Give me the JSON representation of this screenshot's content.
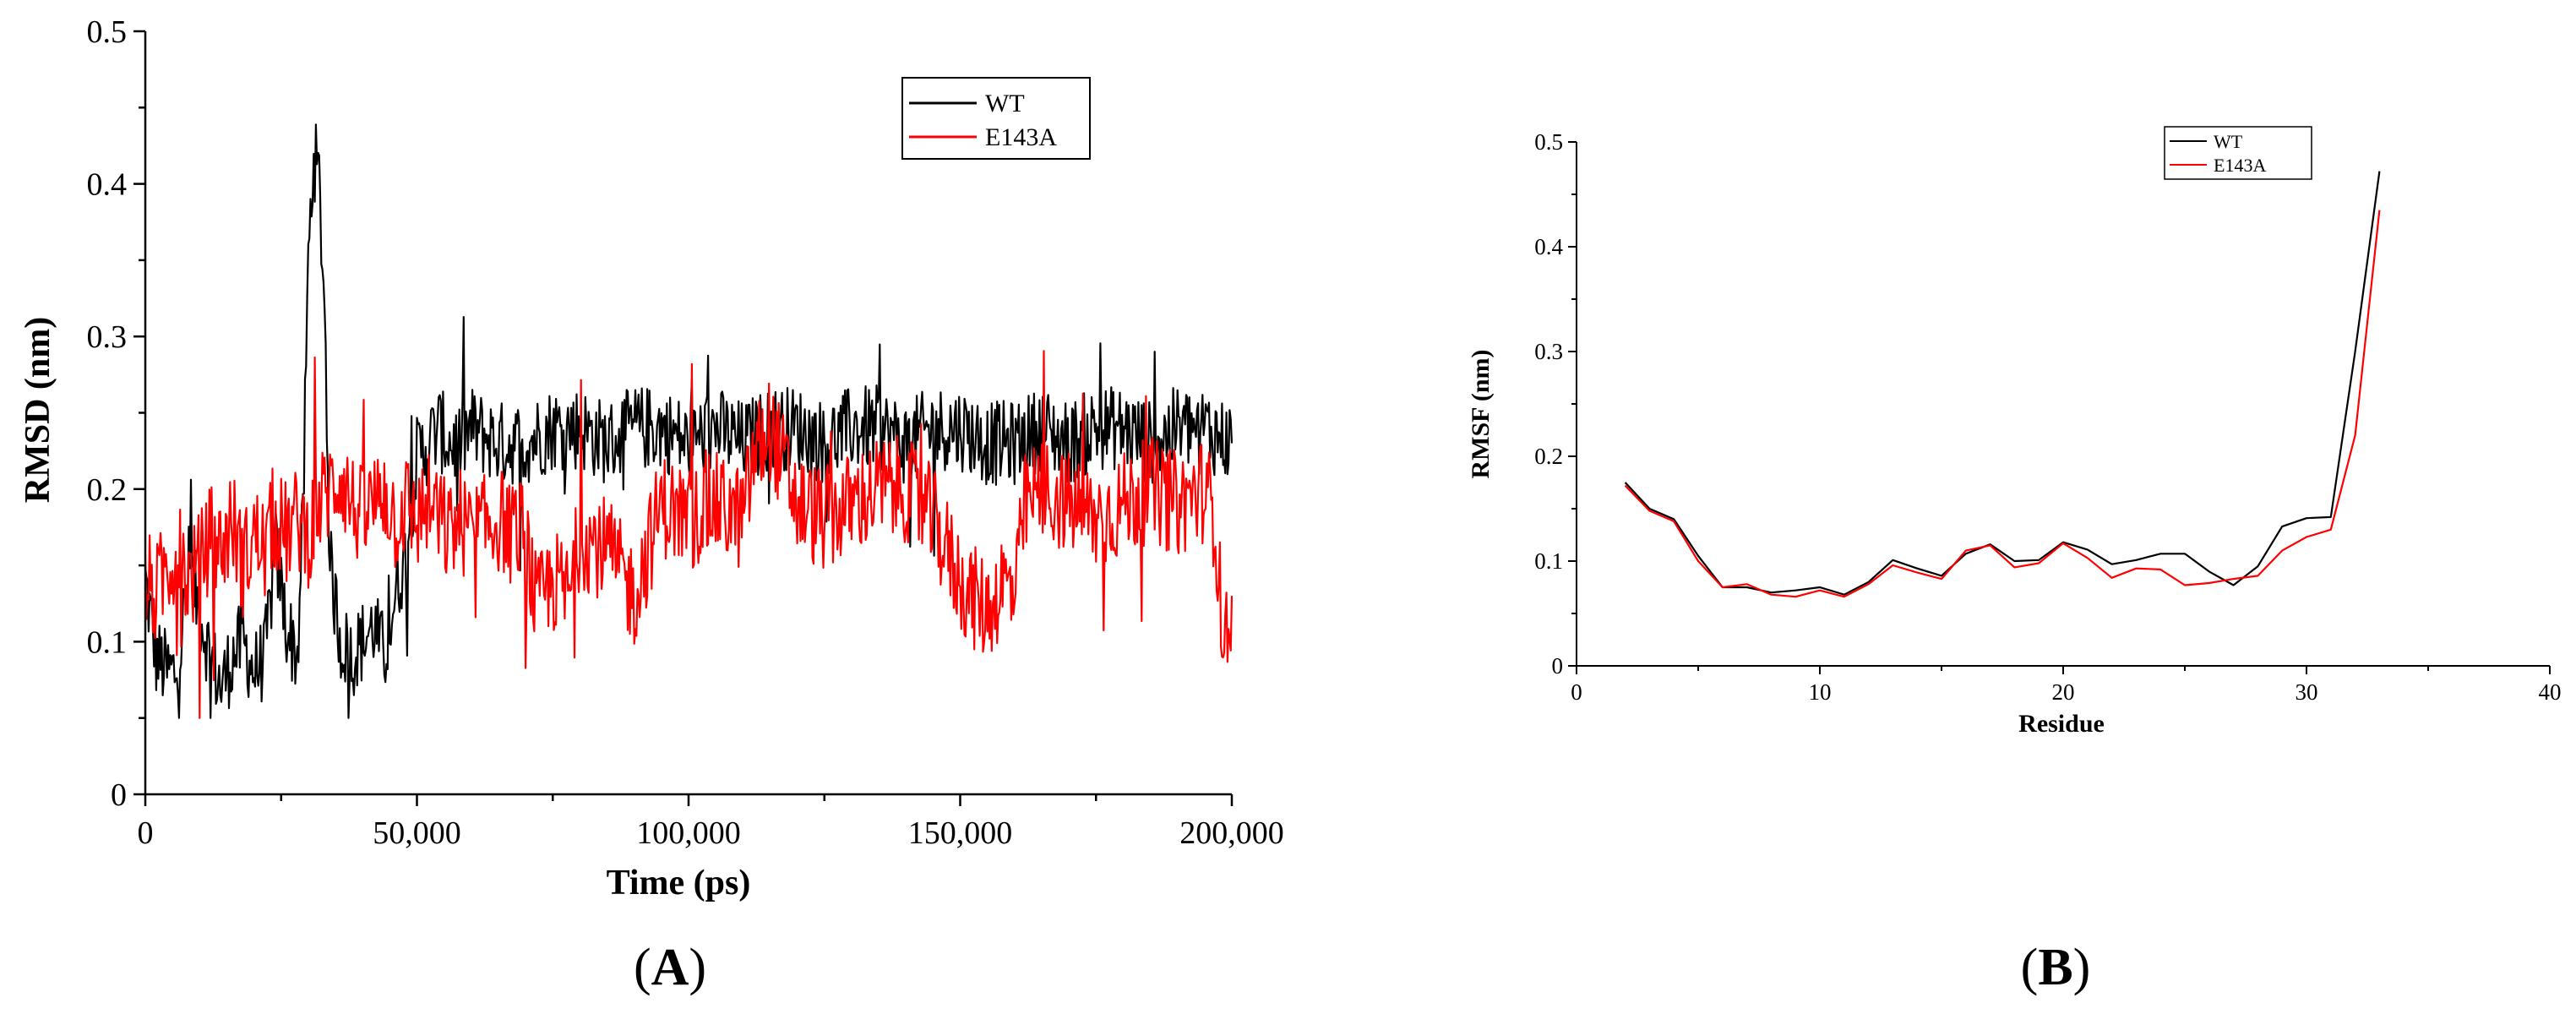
{
  "figure": {
    "panel_labels": [
      {
        "open": "(",
        "letter": "A",
        "close": ")"
      },
      {
        "open": "(",
        "letter": "B",
        "close": ")"
      }
    ]
  },
  "colors": {
    "WT": "#000000",
    "E143A": "#ff0000"
  },
  "chart_data": [
    {
      "type": "line",
      "title": "",
      "xlabel": "Time (ps)",
      "ylabel": "RMSD (nm)",
      "xlim": [
        0,
        200000
      ],
      "ylim": [
        0,
        0.5
      ],
      "x_ticks": [
        0,
        50000,
        100000,
        150000,
        200000
      ],
      "x_tick_labels": [
        "0",
        "50,000",
        "100,000",
        "150,000",
        "200,000"
      ],
      "y_ticks": [
        0,
        0.1,
        0.2,
        0.3,
        0.4,
        0.5
      ],
      "y_tick_labels": [
        "0",
        "0.1",
        "0.2",
        "0.3",
        "0.4",
        "0.5"
      ],
      "legend_position": "top-right",
      "grid": false,
      "series": [
        {
          "name": "WT",
          "color": "#000000",
          "x": [
            0,
            2000,
            4000,
            6000,
            8000,
            10000,
            12000,
            14000,
            16000,
            18000,
            20000,
            22000,
            24000,
            26000,
            28000,
            29000,
            30000,
            31000,
            32000,
            33000,
            34000,
            36000,
            38000,
            40000,
            42000,
            44000,
            46000,
            48000,
            50000,
            52000,
            54000,
            56000,
            58000,
            60000,
            65000,
            70000,
            75000,
            80000,
            85000,
            90000,
            95000,
            100000,
            105000,
            110000,
            115000,
            120000,
            125000,
            130000,
            135000,
            140000,
            145000,
            150000,
            155000,
            160000,
            165000,
            170000,
            175000,
            180000,
            185000,
            190000,
            195000,
            200000
          ],
          "y": [
            0.14,
            0.09,
            0.08,
            0.08,
            0.15,
            0.12,
            0.09,
            0.07,
            0.09,
            0.1,
            0.08,
            0.09,
            0.16,
            0.11,
            0.09,
            0.18,
            0.35,
            0.42,
            0.4,
            0.32,
            0.15,
            0.1,
            0.09,
            0.1,
            0.11,
            0.09,
            0.13,
            0.16,
            0.22,
            0.23,
            0.24,
            0.23,
            0.23,
            0.24,
            0.23,
            0.23,
            0.24,
            0.24,
            0.23,
            0.24,
            0.24,
            0.23,
            0.24,
            0.23,
            0.24,
            0.24,
            0.23,
            0.24,
            0.24,
            0.23,
            0.24,
            0.24,
            0.23,
            0.23,
            0.24,
            0.23,
            0.24,
            0.24,
            0.23,
            0.24,
            0.24,
            0.23
          ]
        },
        {
          "name": "E143A",
          "color": "#ff0000",
          "x": [
            0,
            2000,
            4000,
            6000,
            8000,
            10000,
            12000,
            14000,
            16000,
            18000,
            20000,
            22000,
            24000,
            26000,
            28000,
            30000,
            32000,
            34000,
            36000,
            38000,
            40000,
            42000,
            44000,
            46000,
            48000,
            50000,
            52000,
            54000,
            56000,
            58000,
            60000,
            65000,
            70000,
            72000,
            75000,
            78000,
            80000,
            85000,
            90000,
            95000,
            100000,
            105000,
            110000,
            112000,
            115000,
            120000,
            125000,
            130000,
            135000,
            140000,
            145000,
            150000,
            152000,
            155000,
            158000,
            160000,
            162000,
            165000,
            170000,
            175000,
            180000,
            185000,
            190000,
            195000,
            197000,
            198000,
            199000,
            200000
          ],
          "y": [
            0.14,
            0.13,
            0.15,
            0.16,
            0.14,
            0.15,
            0.17,
            0.16,
            0.18,
            0.15,
            0.17,
            0.16,
            0.18,
            0.17,
            0.18,
            0.17,
            0.19,
            0.2,
            0.21,
            0.19,
            0.18,
            0.19,
            0.2,
            0.18,
            0.19,
            0.18,
            0.19,
            0.18,
            0.17,
            0.18,
            0.17,
            0.18,
            0.17,
            0.12,
            0.14,
            0.13,
            0.17,
            0.16,
            0.13,
            0.19,
            0.18,
            0.19,
            0.18,
            0.22,
            0.24,
            0.19,
            0.18,
            0.19,
            0.2,
            0.2,
            0.18,
            0.14,
            0.13,
            0.12,
            0.14,
            0.13,
            0.19,
            0.2,
            0.19,
            0.18,
            0.19,
            0.2,
            0.19,
            0.2,
            0.18,
            0.12,
            0.1,
            0.13
          ]
        }
      ]
    },
    {
      "type": "line",
      "title": "",
      "xlabel": "Residue",
      "ylabel": "RMSF (nm)",
      "xlim": [
        0,
        40
      ],
      "ylim": [
        0,
        0.5
      ],
      "x_ticks": [
        0,
        10,
        20,
        30,
        40
      ],
      "x_tick_labels": [
        "0",
        "10",
        "20",
        "30",
        "40"
      ],
      "y_ticks": [
        0,
        0.1,
        0.2,
        0.3,
        0.4,
        0.5
      ],
      "y_tick_labels": [
        "0",
        "0.1",
        "0.2",
        "0.3",
        "0.4",
        "0.5"
      ],
      "legend_position": "top-right",
      "grid": false,
      "series": [
        {
          "name": "WT",
          "color": "#000000",
          "x": [
            2,
            3,
            4,
            5,
            6,
            7,
            8,
            9,
            10,
            11,
            12,
            13,
            14,
            15,
            16,
            17,
            18,
            19,
            20,
            21,
            22,
            23,
            24,
            25,
            26,
            27,
            28,
            29,
            30,
            31,
            32,
            33
          ],
          "y": [
            0.175,
            0.15,
            0.14,
            0.105,
            0.075,
            0.075,
            0.07,
            0.072,
            0.075,
            0.068,
            0.08,
            0.101,
            0.093,
            0.086,
            0.107,
            0.116,
            0.1,
            0.101,
            0.118,
            0.111,
            0.097,
            0.101,
            0.107,
            0.107,
            0.09,
            0.077,
            0.095,
            0.133,
            0.141,
            0.142,
            0.3,
            0.472
          ]
        },
        {
          "name": "E143A",
          "color": "#ff0000",
          "x": [
            2,
            3,
            4,
            5,
            6,
            7,
            8,
            9,
            10,
            11,
            12,
            13,
            14,
            15,
            16,
            17,
            18,
            19,
            20,
            21,
            22,
            23,
            24,
            25,
            26,
            27,
            28,
            29,
            30,
            31,
            32,
            33
          ],
          "y": [
            0.172,
            0.148,
            0.138,
            0.1,
            0.075,
            0.078,
            0.068,
            0.066,
            0.072,
            0.066,
            0.078,
            0.096,
            0.089,
            0.083,
            0.11,
            0.115,
            0.094,
            0.098,
            0.117,
            0.103,
            0.084,
            0.093,
            0.092,
            0.077,
            0.079,
            0.083,
            0.086,
            0.11,
            0.123,
            0.13,
            0.22,
            0.435
          ]
        }
      ]
    }
  ]
}
